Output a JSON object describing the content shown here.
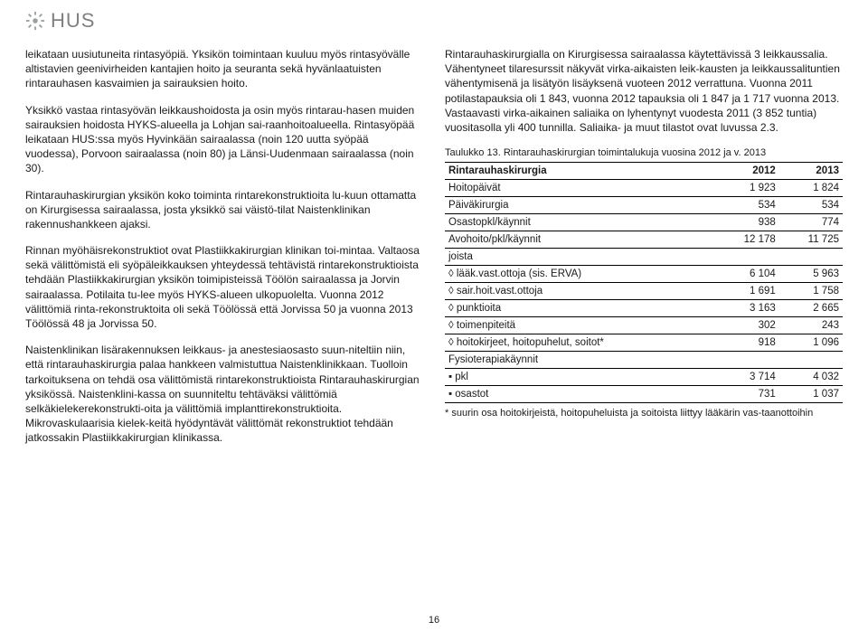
{
  "logo": {
    "text": "HUS",
    "sun_color": "#9aa0a0"
  },
  "left": {
    "p1": "leikataan uusiutuneita rintasyöpiä. Yksikön toimintaan kuuluu myös rintasyövälle altistavien geenivirheiden kantajien hoito ja seuranta sekä hyvänlaatuisten rintarauhasen kasvaimien ja sairauksien hoito.",
    "p2": "Yksikkö vastaa rintasyövän leikkaushoidosta ja osin myös rintarau-hasen muiden sairauksien hoidosta HYKS-alueella ja Lohjan sai-raanhoitoalueella. Rintasyöpää leikataan HUS:ssa myös Hyvinkään sairaalassa (noin 120 uutta syöpää vuodessa), Porvoon sairaalassa (noin 80) ja Länsi-Uudenmaan sairaalassa (noin 30).",
    "p3": "Rintarauhaskirurgian yksikön koko toiminta rintarekonstruktioita lu-kuun ottamatta on Kirurgisessa sairaalassa, josta yksikkö sai väistö-tilat Naistenklinikan rakennushankkeen ajaksi.",
    "p4": "Rinnan myöhäisrekonstruktiot ovat Plastiikkakirurgian klinikan toi-mintaa. Valtaosa sekä välittömistä eli syöpäleikkauksen yhteydessä tehtävistä rintarekonstruktioista tehdään Plastiikkakirurgian yksikön toimipisteissä Töölön sairaalassa ja Jorvin sairaalassa. Potilaita tu-lee myös HYKS-alueen ulkopuolelta. Vuonna 2012 välittömiä rinta-rekonstruktoita oli sekä Töölössä että Jorvissa 50 ja vuonna 2013 Töölössä 48 ja Jorvissa 50.",
    "p5": "Naistenklinikan lisärakennuksen leikkaus- ja anestesiaosasto suun-niteltiin niin, että rintarauhaskirurgia palaa hankkeen valmistuttua Naistenklinikkaan. Tuolloin tarkoituksena on tehdä osa välittömistä rintarekonstruktioista Rintarauhaskirurgian yksikössä. Naistenklini-kassa on suunniteltu tehtäväksi välittömiä selkäkielekerekonstrukti-oita ja välittömiä implanttirekonstruktioita. Mikrovaskulaarisia kielek-keitä hyödyntävät välittömät rekonstruktiot tehdään jatkossakin Plastiikkakirurgian klinikassa."
  },
  "right": {
    "p1": "Rintarauhaskirurgialla on Kirurgisessa sairaalassa käytettävissä 3 leikkaussalia. Vähentyneet tilaresurssit näkyvät virka-aikaisten leik-kausten ja leikkaussalituntien vähentymisenä ja lisätyön lisäyksenä vuoteen 2012 verrattuna.  Vuonna 2011 potilastapauksia oli 1 843, vuonna 2012 tapauksia oli 1 847 ja 1 717 vuonna 2013. Vastaavasti virka-aikainen saliaika on lyhentynyt vuodesta 2011 (3 852 tuntia) vuositasolla yli 400 tunnilla. Saliaika- ja muut tilastot ovat luvussa 2.3.",
    "caption": "Taulukko 13. Rintarauhaskirurgian toimintalukuja vuosina 2012 ja v. 2013",
    "table": {
      "head": [
        "Rintarauhaskirurgia",
        "2012",
        "2013"
      ],
      "rows": [
        [
          "Hoitopäivät",
          "1 923",
          "1 824"
        ],
        [
          "Päiväkirurgia",
          "534",
          "534"
        ],
        [
          "Osastopkl/käynnit",
          "938",
          "774"
        ],
        [
          "Avohoito/pkl/käynnit",
          "12 178",
          "11 725"
        ],
        [
          "joista",
          "",
          ""
        ],
        [
          "◊ lääk.vast.ottoja (sis. ERVA)",
          "6 104",
          "5 963"
        ],
        [
          "◊ sair.hoit.vast.ottoja",
          "1 691",
          "1 758"
        ],
        [
          "◊ punktioita",
          "3 163",
          "2 665"
        ],
        [
          "◊ toimenpiteitä",
          "302",
          "243"
        ],
        [
          "◊ hoitokirjeet, hoitopuhelut, soitot*",
          "918",
          "1 096"
        ],
        [
          "Fysioterapiakäynnit",
          "",
          ""
        ],
        [
          "▪ pkl",
          "3 714",
          "4 032"
        ],
        [
          "▪ osastot",
          "731",
          "1 037"
        ]
      ]
    },
    "footnote": "* suurin osa hoitokirjeistä, hoitopuheluista ja soitoista liittyy lääkärin vas-taanottoihin"
  },
  "pageno": "16"
}
